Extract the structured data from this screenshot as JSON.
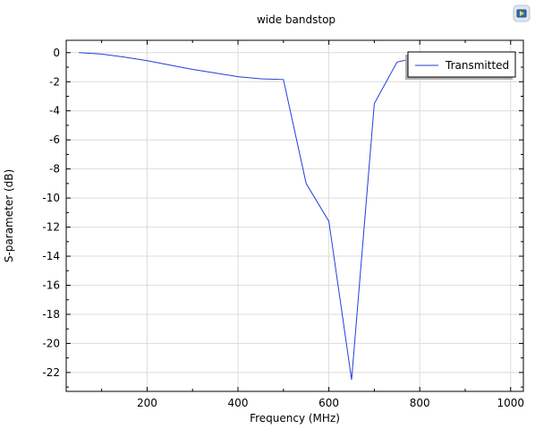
{
  "chart_data": {
    "type": "line",
    "title": "wide bandstop",
    "xlabel": "Frequency (MHz)",
    "ylabel": "S-parameter (dB)",
    "xlim": [
      22,
      1028
    ],
    "ylim": [
      -23.3,
      0.85
    ],
    "x_ticks": [
      200,
      400,
      600,
      800,
      1000
    ],
    "y_ticks": [
      0,
      -2,
      -4,
      -6,
      -8,
      -10,
      -12,
      -14,
      -16,
      -18,
      -20,
      -22
    ],
    "grid": true,
    "legend_position": "top-right",
    "series": [
      {
        "name": "Transmitted",
        "color": "#1f3fe0",
        "x": [
          50,
          100,
          150,
          200,
          250,
          300,
          350,
          400,
          450,
          500,
          550,
          600,
          650,
          700,
          750,
          800,
          850
        ],
        "y": [
          0.0,
          -0.1,
          -0.3,
          -0.55,
          -0.85,
          -1.15,
          -1.4,
          -1.65,
          -1.8,
          -1.85,
          -9.0,
          -11.6,
          -22.5,
          -3.5,
          -0.65,
          -0.3,
          -0.15
        ]
      }
    ]
  }
}
